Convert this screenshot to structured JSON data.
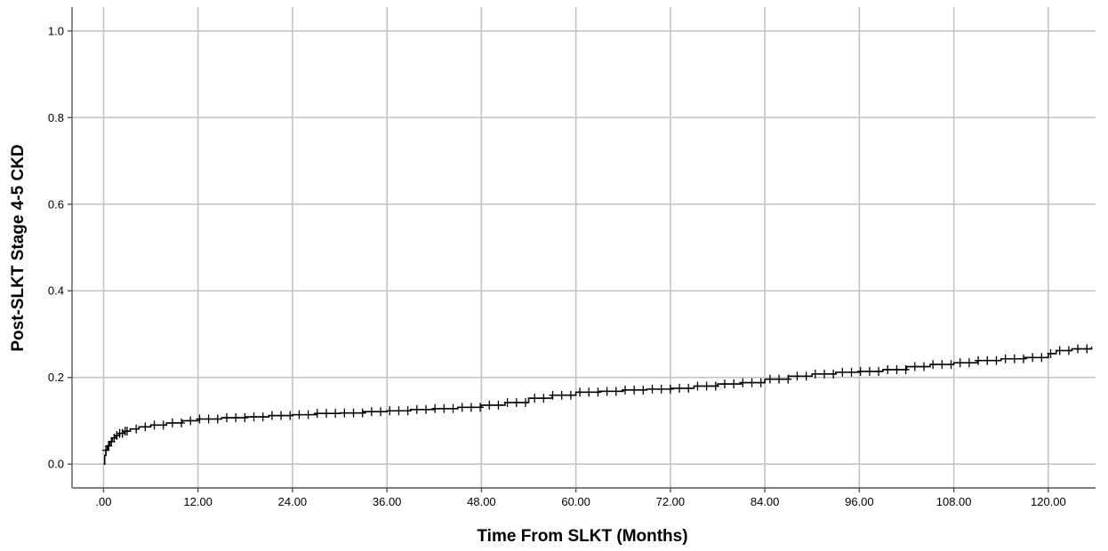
{
  "chart_data": {
    "type": "line",
    "title": "",
    "xlabel": "Time From SLKT (Months)",
    "ylabel": "Post-SLKT Stage 4-5 CKD",
    "xlim": [
      -4,
      126
    ],
    "ylim": [
      -0.055,
      1.055
    ],
    "x_ticks": [
      0,
      12,
      24,
      36,
      48,
      60,
      72,
      84,
      96,
      108,
      120
    ],
    "x_tick_labels": [
      ".00",
      "12.00",
      "24.00",
      "36.00",
      "48.00",
      "60.00",
      "72.00",
      "84.00",
      "96.00",
      "108.00",
      "120.00"
    ],
    "y_ticks": [
      0,
      0.2,
      0.4,
      0.6,
      0.8,
      1.0
    ],
    "y_tick_labels": [
      "0.0",
      "0.2",
      "0.4",
      "0.6",
      "0.8",
      "1.0"
    ],
    "grid": true,
    "legend": "none",
    "series": [
      {
        "line_color": "#000000",
        "step": true,
        "x": [
          0,
          0.15,
          0.3,
          0.5,
          0.8,
          1.1,
          1.5,
          2,
          2.6,
          3.4,
          4.5,
          6,
          8,
          10,
          12,
          15,
          18,
          21,
          24,
          27,
          30,
          33,
          36,
          39,
          42,
          45,
          48,
          51,
          54,
          57,
          60,
          63,
          66,
          69,
          72,
          75,
          78,
          81,
          84,
          87,
          90,
          93,
          96,
          99,
          102,
          105,
          108,
          111,
          114,
          117,
          120,
          121,
          123,
          125.5
        ],
        "y": [
          0,
          0.02,
          0.032,
          0.042,
          0.052,
          0.06,
          0.066,
          0.071,
          0.076,
          0.081,
          0.086,
          0.09,
          0.095,
          0.1,
          0.104,
          0.107,
          0.109,
          0.112,
          0.114,
          0.117,
          0.118,
          0.121,
          0.123,
          0.126,
          0.128,
          0.131,
          0.136,
          0.142,
          0.152,
          0.159,
          0.166,
          0.168,
          0.171,
          0.173,
          0.175,
          0.18,
          0.185,
          0.188,
          0.196,
          0.203,
          0.208,
          0.212,
          0.214,
          0.218,
          0.225,
          0.23,
          0.234,
          0.239,
          0.243,
          0.246,
          0.255,
          0.262,
          0.266,
          0.271
        ]
      }
    ]
  }
}
